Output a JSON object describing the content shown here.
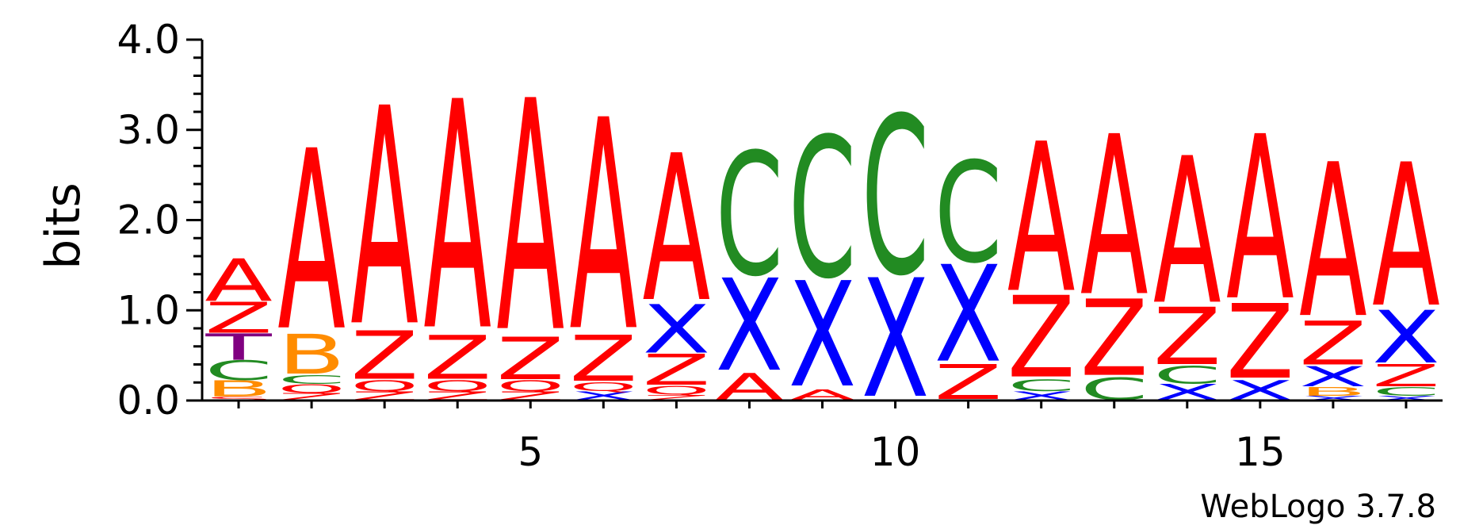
{
  "chart_data": {
    "type": "sequence-logo",
    "ylabel": "bits",
    "ylim": [
      0,
      4.0
    ],
    "ymajor_ticks": [
      "0.0",
      "1.0",
      "2.0",
      "3.0",
      "4.0"
    ],
    "yminor_step": 0.2,
    "xlim": [
      0.5,
      17.5
    ],
    "xlabeled_ticks": [
      "5",
      "10",
      "15"
    ],
    "footer": "WebLogo 3.7.8",
    "colors": {
      "A": "#ff0000",
      "Z": "#ff0000",
      "Q": "#ff0000",
      "S": "#ff0000",
      "X": "#0000ff",
      "C": "#228b22",
      "B": "#ff8c00",
      "T": "#800080"
    },
    "positions": [
      {
        "pos": 1,
        "stack": [
          [
            "S",
            0.04
          ],
          [
            "B",
            0.18
          ],
          [
            "C",
            0.22
          ],
          [
            "T",
            0.3
          ],
          [
            "Z",
            0.35
          ],
          [
            "A",
            0.48
          ]
        ]
      },
      {
        "pos": 2,
        "stack": [
          [
            "Z",
            0.08
          ],
          [
            "Q",
            0.1
          ],
          [
            "C",
            0.1
          ],
          [
            "B",
            0.45
          ],
          [
            "A",
            2.05
          ]
        ]
      },
      {
        "pos": 3,
        "stack": [
          [
            "Z",
            0.1
          ],
          [
            "Q",
            0.12
          ],
          [
            "Z",
            0.55
          ],
          [
            "A",
            2.48
          ]
        ]
      },
      {
        "pos": 4,
        "stack": [
          [
            "Z",
            0.1
          ],
          [
            "Q",
            0.12
          ],
          [
            "Z",
            0.5
          ],
          [
            "A",
            2.6
          ]
        ]
      },
      {
        "pos": 5,
        "stack": [
          [
            "Z",
            0.1
          ],
          [
            "Q",
            0.12
          ],
          [
            "Z",
            0.48
          ],
          [
            "A",
            2.63
          ]
        ]
      },
      {
        "pos": 6,
        "stack": [
          [
            "X",
            0.1
          ],
          [
            "Q",
            0.1
          ],
          [
            "Z",
            0.52
          ],
          [
            "A",
            2.4
          ]
        ]
      },
      {
        "pos": 7,
        "stack": [
          [
            "Z",
            0.06
          ],
          [
            "Q",
            0.1
          ],
          [
            "Z",
            0.35
          ],
          [
            "X",
            0.55
          ],
          [
            "A",
            1.67
          ]
        ]
      },
      {
        "pos": 8,
        "stack": [
          [
            "A",
            0.3
          ],
          [
            "X",
            1.05
          ],
          [
            "C",
            1.4
          ]
        ]
      },
      {
        "pos": 9,
        "stack": [
          [
            "A",
            0.12
          ],
          [
            "X",
            1.2
          ],
          [
            "C",
            1.6
          ]
        ]
      },
      {
        "pos": 10,
        "stack": [
          [
            "X",
            1.35
          ],
          [
            "C",
            1.8
          ]
        ]
      },
      {
        "pos": 11,
        "stack": [
          [
            "Z",
            0.4
          ],
          [
            "X",
            1.1
          ],
          [
            "C",
            1.15
          ]
        ]
      },
      {
        "pos": 12,
        "stack": [
          [
            "X",
            0.1
          ],
          [
            "C",
            0.13
          ],
          [
            "Z",
            0.93
          ],
          [
            "A",
            1.7
          ]
        ]
      },
      {
        "pos": 13,
        "stack": [
          [
            "C",
            0.25
          ],
          [
            "Z",
            0.87
          ],
          [
            "A",
            1.82
          ]
        ]
      },
      {
        "pos": 14,
        "stack": [
          [
            "X",
            0.18
          ],
          [
            "C",
            0.2
          ],
          [
            "Z",
            0.65
          ],
          [
            "A",
            1.67
          ]
        ]
      },
      {
        "pos": 15,
        "stack": [
          [
            "X",
            0.22
          ],
          [
            "Z",
            0.85
          ],
          [
            "A",
            1.87
          ]
        ]
      },
      {
        "pos": 16,
        "stack": [
          [
            "X",
            0.05
          ],
          [
            "B",
            0.1
          ],
          [
            "X",
            0.23
          ],
          [
            "Z",
            0.5
          ],
          [
            "A",
            1.75
          ]
        ]
      },
      {
        "pos": 17,
        "stack": [
          [
            "X",
            0.05
          ],
          [
            "C",
            0.1
          ],
          [
            "Z",
            0.25
          ],
          [
            "X",
            0.6
          ],
          [
            "A",
            1.63
          ]
        ]
      }
    ]
  }
}
